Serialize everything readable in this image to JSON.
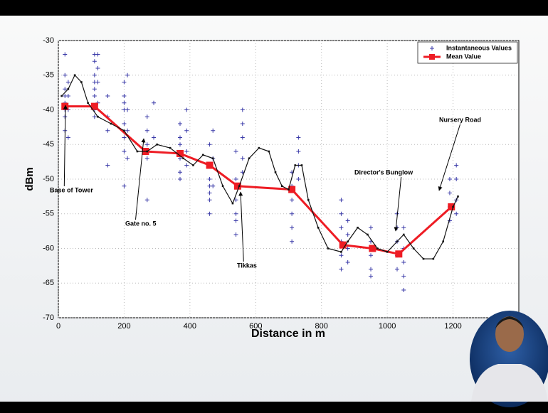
{
  "chart_data": {
    "type": "line",
    "ylabel": "dBm",
    "xlabel": "Distance in m",
    "xlim": [
      0,
      1400
    ],
    "xticks": [
      0,
      200,
      400,
      600,
      800,
      1000,
      1200
    ],
    "ylim": [
      -70,
      -30
    ],
    "yticks": [
      -70,
      -65,
      -60,
      -55,
      -50,
      -45,
      -40,
      -35,
      -30
    ],
    "grid": true,
    "legend": "upper right",
    "series": [
      {
        "name": "Instantaneous Values",
        "color": "#3a3aa8",
        "marker": "+",
        "x": [
          20,
          20,
          20,
          20,
          20,
          20,
          20,
          20,
          30,
          30,
          30,
          30,
          110,
          110,
          110,
          110,
          110,
          110,
          110,
          110,
          120,
          120,
          120,
          120,
          150,
          150,
          150,
          150,
          200,
          200,
          200,
          200,
          200,
          200,
          200,
          200,
          210,
          210,
          210,
          210,
          270,
          270,
          270,
          270,
          270,
          290,
          290,
          370,
          370,
          370,
          370,
          370,
          370,
          390,
          390,
          390,
          390,
          460,
          460,
          460,
          460,
          460,
          460,
          460,
          470,
          470,
          470,
          540,
          540,
          540,
          540,
          540,
          540,
          560,
          560,
          560,
          560,
          560,
          710,
          710,
          710,
          710,
          710,
          710,
          730,
          730,
          730,
          730,
          860,
          860,
          860,
          860,
          860,
          860,
          880,
          880,
          880,
          880,
          950,
          950,
          950,
          950,
          950,
          1030,
          1030,
          1030,
          1030,
          1030,
          1050,
          1050,
          1050,
          1050,
          1050,
          1190,
          1190,
          1190,
          1190,
          1210,
          1210,
          1210,
          1210
        ],
        "values": [
          -32,
          -35,
          -37,
          -38,
          -39,
          -40,
          -41,
          -43,
          -36,
          -38,
          -40,
          -44,
          -32,
          -33,
          -35,
          -36,
          -37,
          -38,
          -40,
          -41,
          -32,
          -34,
          -36,
          -39,
          -41,
          -43,
          -48,
          -38,
          -36,
          -38,
          -39,
          -40,
          -42,
          -44,
          -46,
          -51,
          -35,
          -40,
          -43,
          -47,
          -41,
          -43,
          -45,
          -47,
          -53,
          -39,
          -44,
          -42,
          -44,
          -45,
          -47,
          -49,
          -50,
          -40,
          -43,
          -46,
          -48,
          -45,
          -48,
          -50,
          -51,
          -52,
          -53,
          -55,
          -43,
          -47,
          -51,
          -46,
          -50,
          -53,
          -55,
          -56,
          -58,
          -40,
          -42,
          -44,
          -47,
          -49,
          -49,
          -51,
          -53,
          -55,
          -57,
          -59,
          -44,
          -46,
          -48,
          -50,
          -53,
          -55,
          -57,
          -59,
          -61,
          -63,
          -56,
          -58,
          -60,
          -62,
          -57,
          -59,
          -61,
          -63,
          -64,
          -55,
          -57,
          -59,
          -61,
          -63,
          -57,
          -60,
          -62,
          -64,
          -66,
          -50,
          -52,
          -54,
          -56,
          -48,
          -50,
          -53,
          -55
        ]
      },
      {
        "name": "Mean Value",
        "color": "#ee1c24",
        "marker": "square",
        "x": [
          20,
          110,
          265,
          370,
          460,
          545,
          710,
          865,
          955,
          1035,
          1195
        ],
        "values": [
          -39.5,
          -39.5,
          -46,
          -46.3,
          -48,
          -51,
          -51.5,
          -59.5,
          -60,
          -60.8,
          -54
        ]
      },
      {
        "color": "#111111",
        "marker": "dot",
        "x": [
          10,
          30,
          50,
          70,
          90,
          120,
          160,
          200,
          240,
          270,
          300,
          340,
          380,
          410,
          440,
          470,
          500,
          530,
          550,
          580,
          610,
          640,
          660,
          680,
          700,
          720,
          740,
          760,
          790,
          820,
          860,
          880,
          910,
          940,
          970,
          1000,
          1030,
          1050,
          1080,
          1110,
          1140,
          1170,
          1200,
          1215
        ],
        "values": [
          -38,
          -37,
          -35,
          -36,
          -39,
          -41,
          -42,
          -43,
          -46,
          -46,
          -45,
          -45.5,
          -47,
          -48,
          -46.5,
          -47,
          -51,
          -53.5,
          -51,
          -47,
          -45.5,
          -46,
          -49,
          -51,
          -51.5,
          -48,
          -48,
          -53,
          -57,
          -60,
          -60.5,
          -59,
          -57,
          -58,
          -60,
          -60.5,
          -59,
          -58,
          -60,
          -61.5,
          -61.5,
          -59,
          -54,
          -52.5
        ]
      }
    ],
    "annotations": [
      "Base of Tower",
      "Gate no. 5",
      "Tikkas",
      "Director's Bunglow",
      "Nursery Road"
    ]
  }
}
